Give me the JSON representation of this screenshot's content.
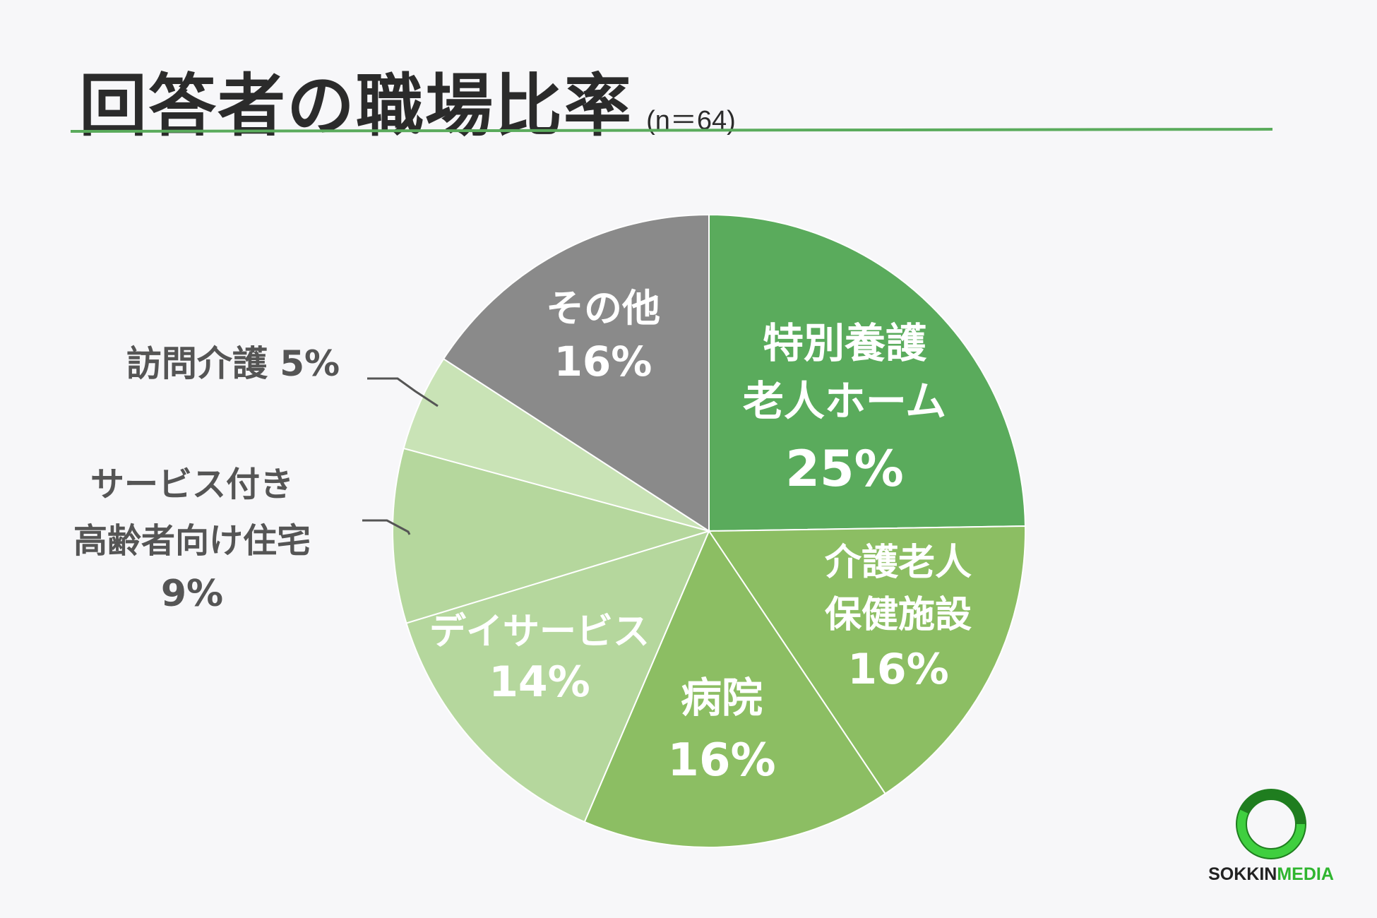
{
  "title": "回答者の職場比率",
  "sample_size": "(n＝64)",
  "chart_data": {
    "type": "pie",
    "start": "12 o'clock, clockwise",
    "slices": [
      {
        "label": [
          "特別養護",
          "老人ホーム"
        ],
        "value": 25,
        "value_label": "25%",
        "color": "#5aab5c",
        "label_pos": "inside"
      },
      {
        "label": [
          "介護老人",
          "保健施設"
        ],
        "value": 16,
        "value_label": "16%",
        "color": "#8cbe63",
        "label_pos": "inside"
      },
      {
        "label": [
          "病院"
        ],
        "value": 16,
        "value_label": "16%",
        "color": "#8cbe63",
        "label_pos": "inside"
      },
      {
        "label": [
          "デイサービス"
        ],
        "value": 14,
        "value_label": "14%",
        "color": "#b5d79d",
        "label_pos": "inside"
      },
      {
        "label": [
          "サービス付き",
          "高齢者向け住宅"
        ],
        "value": 9,
        "value_label": "9%",
        "color": "#b5d79d",
        "label_pos": "outside"
      },
      {
        "label": [
          "訪問介護"
        ],
        "value": 5,
        "value_label": "5%",
        "color": "#c9e3b6",
        "label_pos": "outside"
      },
      {
        "label": [
          "その他"
        ],
        "value": 16,
        "value_label": "16%",
        "color": "#8a8a8a",
        "label_pos": "inside"
      }
    ]
  },
  "logo": {
    "text_part1": "SOKKIN",
    "text_part2": "MEDIA",
    "ring_color": "#2fb52f"
  }
}
